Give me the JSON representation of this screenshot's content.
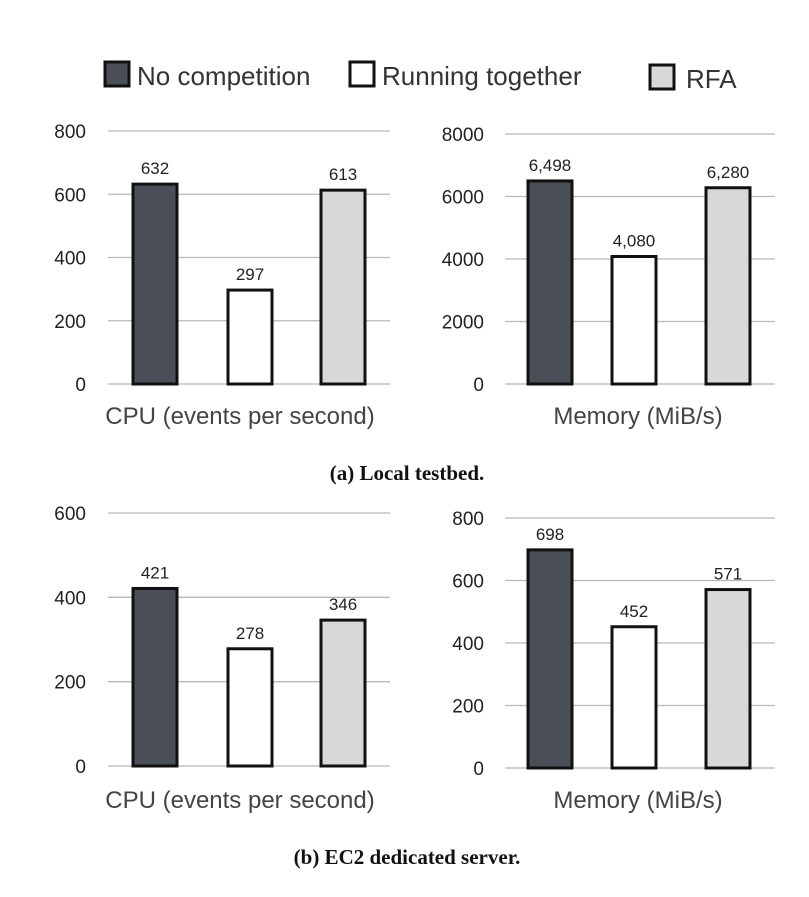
{
  "legend": [
    {
      "label": "No competition",
      "color": "#4a4e57"
    },
    {
      "label": "Running together",
      "color": "#ffffff"
    },
    {
      "label": "RFA",
      "color": "#d8d8d8"
    }
  ],
  "captions": {
    "a": "(a) Local testbed.",
    "b": "(b) EC2 dedicated server."
  },
  "chart_data": [
    {
      "type": "bar",
      "panel": "a-left",
      "categories": [
        "No competition",
        "Running together",
        "RFA"
      ],
      "values": [
        632,
        297,
        613
      ],
      "data_labels": [
        "632",
        "297",
        "613"
      ],
      "xlabel": "CPU (events per second)",
      "ylim": [
        0,
        800
      ],
      "yticks": [
        0,
        200,
        400,
        600,
        800
      ],
      "ytick_labels": [
        "0",
        "200",
        "400",
        "600",
        "800"
      ],
      "grid": true
    },
    {
      "type": "bar",
      "panel": "a-right",
      "categories": [
        "No competition",
        "Running together",
        "RFA"
      ],
      "values": [
        6498,
        4080,
        6280
      ],
      "data_labels": [
        "6,498",
        "4,080",
        "6,280"
      ],
      "xlabel": "Memory (MiB/s)",
      "ylim": [
        0,
        8000
      ],
      "yticks": [
        0,
        2000,
        4000,
        6000,
        8000
      ],
      "ytick_labels": [
        "0",
        "2000",
        "4000",
        "6000",
        "8000"
      ],
      "grid": true
    },
    {
      "type": "bar",
      "panel": "b-left",
      "categories": [
        "No competition",
        "Running together",
        "RFA"
      ],
      "values": [
        421,
        278,
        346
      ],
      "data_labels": [
        "421",
        "278",
        "346"
      ],
      "xlabel": "CPU (events per second)",
      "ylim": [
        0,
        600
      ],
      "yticks": [
        0,
        200,
        400,
        600
      ],
      "ytick_labels": [
        "0",
        "200",
        "400",
        "600"
      ],
      "grid": true
    },
    {
      "type": "bar",
      "panel": "b-right",
      "categories": [
        "No competition",
        "Running together",
        "RFA"
      ],
      "values": [
        698,
        452,
        571
      ],
      "data_labels": [
        "698",
        "452",
        "571"
      ],
      "xlabel": "Memory (MiB/s)",
      "ylim": [
        0,
        800
      ],
      "yticks": [
        0,
        200,
        400,
        600,
        800
      ],
      "ytick_labels": [
        "0",
        "200",
        "400",
        "600",
        "800"
      ],
      "grid": true
    }
  ]
}
